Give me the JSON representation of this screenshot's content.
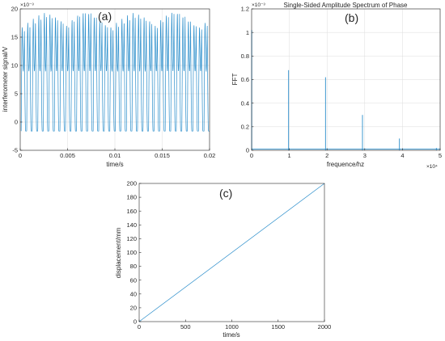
{
  "chart_data": [
    {
      "type": "line",
      "panel_label": "(a)",
      "title": "",
      "xlabel": "time/s",
      "ylabel": "interferometer signal/V",
      "y_exponent": "×10⁻³",
      "xlim": [
        0,
        0.02
      ],
      "ylim": [
        -5,
        20
      ],
      "xticks": [
        0,
        0.005,
        0.01,
        0.015,
        0.02
      ],
      "xtick_labels": [
        "0",
        "0.005",
        "0.01",
        "0.015",
        "0.02"
      ],
      "yticks": [
        -5,
        0,
        5,
        10,
        15,
        20
      ],
      "ytick_labels": [
        "-5",
        "0",
        "5",
        "10",
        "15",
        "20"
      ],
      "grid": true,
      "color": "#2b8ecb",
      "signal": {
        "x_start": 0.0001,
        "x_end": 0.02,
        "cycles": 34,
        "trough": -1.6,
        "dip": 9,
        "peak_levels": [
          16.8,
          17.6,
          18.3,
          18.9,
          19.3,
          19.0,
          18.5,
          17.8,
          17.0,
          18.0,
          18.8,
          19.3,
          19.2,
          18.6,
          17.9,
          17.2
        ]
      }
    },
    {
      "type": "line",
      "panel_label": "(b)",
      "title": "Single-Sided Amplitude Spectrum of Phase",
      "xlabel": "frequence/hz",
      "ylabel": "FFT",
      "x_exponent": "×10⁴",
      "y_exponent": "×10⁻³",
      "xlim": [
        0,
        50000
      ],
      "ylim": [
        0,
        0.0012
      ],
      "xticks": [
        0,
        10000,
        20000,
        30000,
        40000,
        50000
      ],
      "xtick_labels": [
        "0",
        "1",
        "2",
        "3",
        "4",
        "5"
      ],
      "yticks": [
        0,
        0.0002,
        0.0004,
        0.0006,
        0.0008,
        0.001,
        0.0012
      ],
      "ytick_labels": [
        "0",
        "0.2",
        "0.4",
        "0.6",
        "0.8",
        "1",
        "1.2"
      ],
      "grid": true,
      "color": "#2b8ecb",
      "peaks": [
        {
          "x": 30,
          "y": 0.00102
        },
        {
          "x": 9800,
          "y": 0.00068
        },
        {
          "x": 19600,
          "y": 0.00062
        },
        {
          "x": 29400,
          "y": 0.0003
        },
        {
          "x": 39200,
          "y": 0.0001
        },
        {
          "x": 49000,
          "y": 2e-05
        }
      ],
      "baseline": 1e-05
    },
    {
      "type": "line",
      "panel_label": "(c)",
      "title": "",
      "xlabel": "time/s",
      "ylabel": "displacement/mm",
      "xlim": [
        0,
        2000
      ],
      "ylim": [
        0,
        200
      ],
      "xticks": [
        0,
        500,
        1000,
        1500,
        2000
      ],
      "xtick_labels": [
        "0",
        "500",
        "1000",
        "1500",
        "2000"
      ],
      "yticks": [
        0,
        20,
        40,
        60,
        80,
        100,
        120,
        140,
        160,
        180,
        200
      ],
      "ytick_labels": [
        "0",
        "20",
        "40",
        "60",
        "80",
        "100",
        "120",
        "140",
        "160",
        "180",
        "200"
      ],
      "grid": false,
      "color": "#2b8ecb",
      "x": [
        0,
        2000
      ],
      "y": [
        0,
        200
      ]
    }
  ]
}
